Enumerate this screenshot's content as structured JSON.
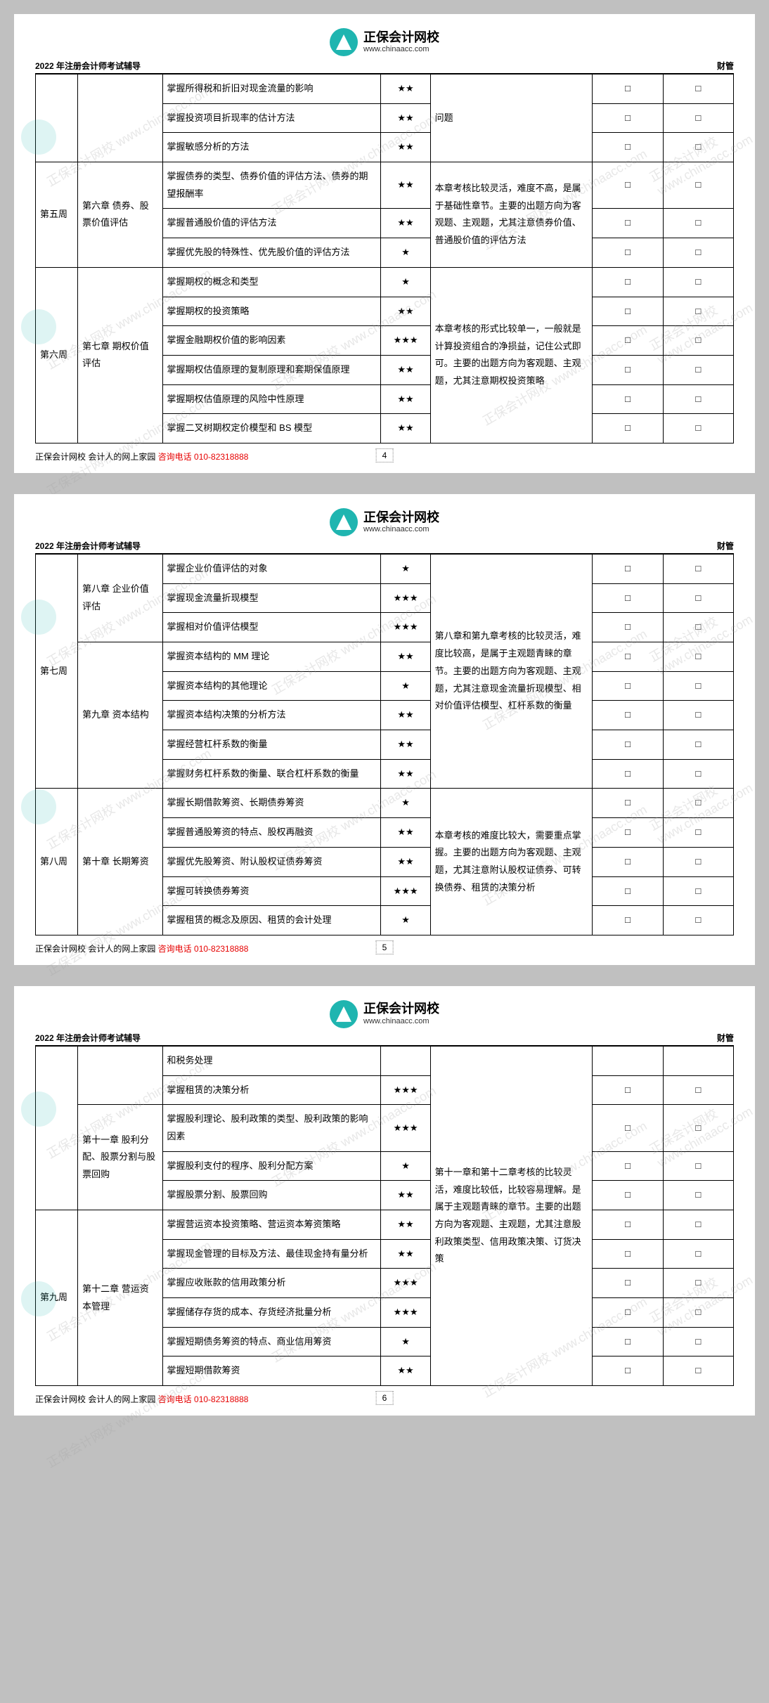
{
  "header": {
    "left": "2022 年注册会计师考试辅导",
    "right": "财管",
    "logo_title": "正保会计网校",
    "logo_url": "www.chinaacc.com"
  },
  "footer": {
    "org": "正保会计网校  会计人的网上家园 ",
    "phone_label": "咨询电话 ",
    "phone_num": "010-82318888"
  },
  "checkbox_glyph": "□",
  "pages": [
    {
      "page_num": "4",
      "groups": [
        {
          "week": "",
          "chapter": "",
          "note": "问题",
          "rows": [
            {
              "point": "掌握所得税和折旧对现金流量的影响",
              "stars": "★★"
            },
            {
              "point": "掌握投资项目折现率的估计方法",
              "stars": "★★"
            },
            {
              "point": "掌握敏感分析的方法",
              "stars": "★★"
            }
          ]
        },
        {
          "week": "第五周",
          "chapter": "第六章  债券、股票价值评估",
          "note": "本章考核比较灵活，难度不高，是属于基础性章节。主要的出题方向为客观题、主观题，尤其注意债券价值、普通股价值的评估方法",
          "rows": [
            {
              "point": "掌握债券的类型、债券价值的评估方法、债券的期望报酬率",
              "stars": "★★"
            },
            {
              "point": "掌握普通股价值的评估方法",
              "stars": "★★"
            },
            {
              "point": "掌握优先股的特殊性、优先股价值的评估方法",
              "stars": "★"
            }
          ]
        },
        {
          "week": "第六周",
          "chapter": "第七章  期权价值评估",
          "note": "本章考核的形式比较单一，一般就是计算投资组合的净损益，记住公式即可。主要的出题方向为客观题、主观题，尤其注意期权投资策略",
          "rows": [
            {
              "point": "掌握期权的概念和类型",
              "stars": "★"
            },
            {
              "point": "掌握期权的投资策略",
              "stars": "★★"
            },
            {
              "point": "掌握金融期权价值的影响因素",
              "stars": "★★★"
            },
            {
              "point": "掌握期权估值原理的复制原理和套期保值原理",
              "stars": "★★"
            },
            {
              "point": "掌握期权估值原理的风险中性原理",
              "stars": "★★"
            },
            {
              "point": "掌握二叉树期权定价模型和 BS 模型",
              "stars": "★★"
            }
          ]
        }
      ]
    },
    {
      "page_num": "5",
      "groups": [
        {
          "week": "第七周",
          "chapter": "第八章  企业价值评估",
          "note_span": 8,
          "note": "第八章和第九章考核的比较灵活，难度比较高，是属于主观题青睐的章节。主要的出题方向为客观题、主观题，尤其注意现金流量折现模型、相对价值评估模型、杠杆系数的衡量",
          "rows": [
            {
              "point": "掌握企业价值评估的对象",
              "stars": "★"
            },
            {
              "point": "掌握现金流量折现模型",
              "stars": "★★★"
            },
            {
              "point": "掌握相对价值评估模型",
              "stars": "★★★"
            }
          ]
        },
        {
          "week": "",
          "chapter": "第九章  资本结构",
          "note": "",
          "rows": [
            {
              "point": "掌握资本结构的 MM 理论",
              "stars": "★★"
            },
            {
              "point": "掌握资本结构的其他理论",
              "stars": "★"
            },
            {
              "point": "掌握资本结构决策的分析方法",
              "stars": "★★"
            },
            {
              "point": "掌握经营杠杆系数的衡量",
              "stars": "★★"
            },
            {
              "point": "掌握财务杠杆系数的衡量、联合杠杆系数的衡量",
              "stars": "★★"
            }
          ]
        },
        {
          "week": "第八周",
          "chapter": "第十章  长期筹资",
          "note": "本章考核的难度比较大，需要重点掌握。主要的出题方向为客观题、主观题，尤其注意附认股权证债券、可转换债券、租赁的决策分析",
          "rows": [
            {
              "point": "掌握长期借款筹资、长期债券筹资",
              "stars": "★"
            },
            {
              "point": "掌握普通股筹资的特点、股权再融资",
              "stars": "★★"
            },
            {
              "point": "掌握优先股筹资、附认股权证债券筹资",
              "stars": "★★"
            },
            {
              "point": "掌握可转换债券筹资",
              "stars": "★★★"
            },
            {
              "point": "掌握租赁的概念及原因、租赁的会计处理",
              "stars": "★"
            }
          ]
        }
      ]
    },
    {
      "page_num": "6",
      "groups": [
        {
          "week": "",
          "chapter": "",
          "note_span": 11,
          "note": "第十一章和第十二章考核的比较灵活，难度比较低，比较容易理解。是属于主观题青睐的章节。主要的出题方向为客观题、主观题，尤其注意股利政策类型、信用政策决策、订货决策",
          "rows": [
            {
              "point": "和税务处理",
              "stars": "",
              "no_cb": true
            },
            {
              "point": "掌握租赁的决策分析",
              "stars": "★★★"
            }
          ]
        },
        {
          "week": "",
          "chapter": "第十一章  股利分配、股票分割与股票回购",
          "note": "",
          "rows": [
            {
              "point": "掌握股利理论、股利政策的类型、股利政策的影响因素",
              "stars": "★★★"
            },
            {
              "point": "掌握股利支付的程序、股利分配方案",
              "stars": "★"
            },
            {
              "point": "掌握股票分割、股票回购",
              "stars": "★★"
            }
          ]
        },
        {
          "week": "第九周",
          "chapter": "第十二章  营运资本管理",
          "note": "",
          "rows": [
            {
              "point": "掌握营运资本投资策略、营运资本筹资策略",
              "stars": "★★"
            },
            {
              "point": "掌握现金管理的目标及方法、最佳现金持有量分析",
              "stars": "★★"
            },
            {
              "point": "掌握应收账款的信用政策分析",
              "stars": "★★★"
            },
            {
              "point": "掌握储存存货的成本、存货经济批量分析",
              "stars": "★★★"
            },
            {
              "point": "掌握短期债务筹资的特点、商业信用筹资",
              "stars": "★"
            },
            {
              "point": "掌握短期借款筹资",
              "stars": "★★"
            }
          ]
        }
      ]
    }
  ]
}
